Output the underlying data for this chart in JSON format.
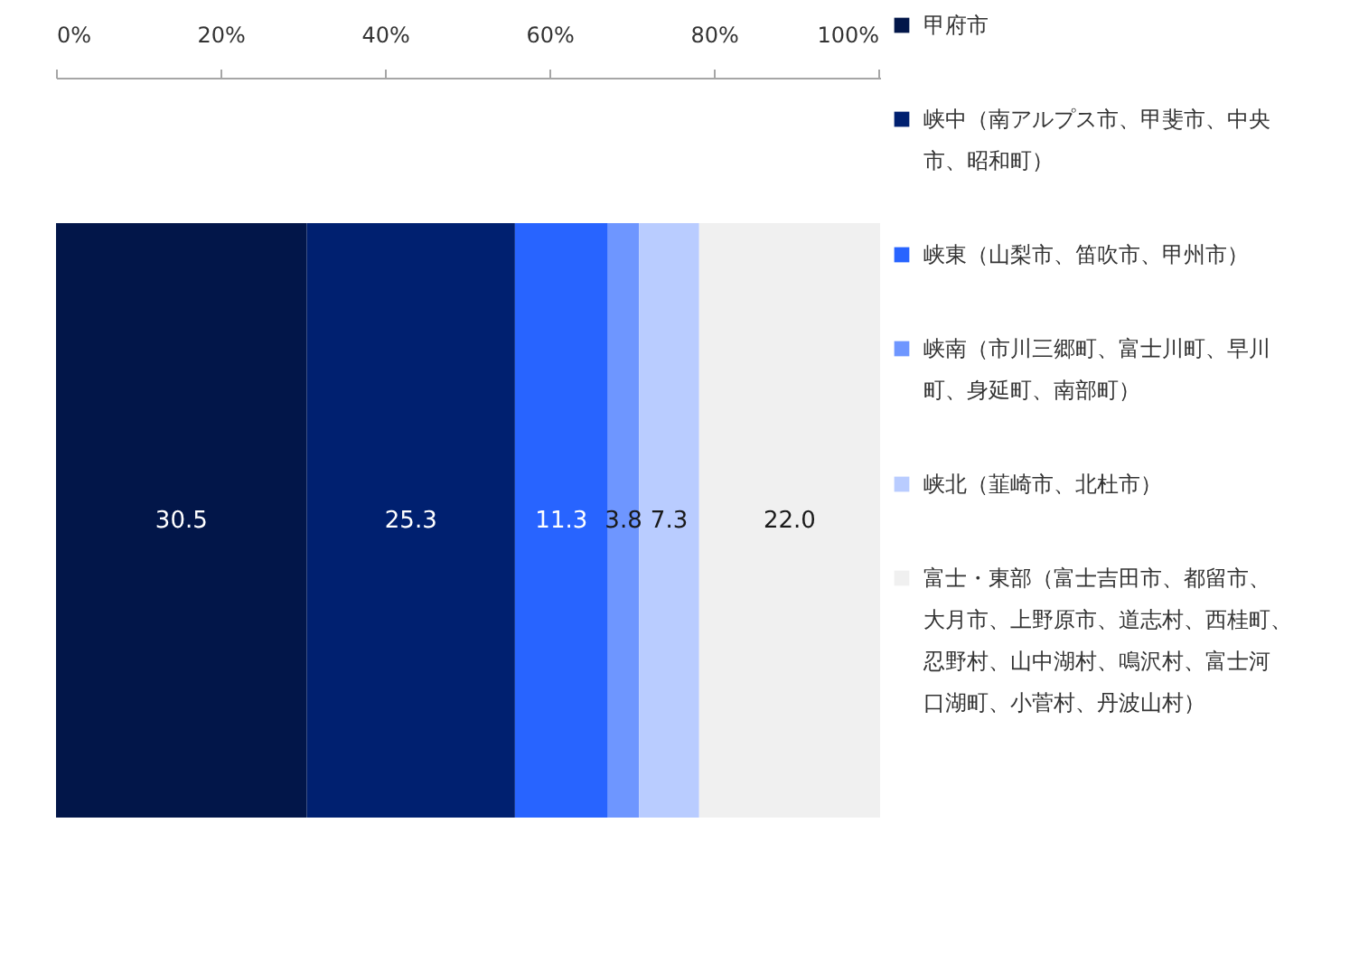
{
  "chart_data": {
    "type": "bar",
    "orientation": "horizontal",
    "stacked": true,
    "categories": [
      null
    ],
    "series": [
      {
        "name": "甲府市",
        "color": "#021649",
        "values": [
          30.5
        ],
        "value_labels": [
          "30.5"
        ]
      },
      {
        "name": "峡中（南アルプス市、甲斐市、中央市、昭和町）",
        "color": "#002070",
        "values": [
          25.3
        ],
        "value_labels": [
          "25.3"
        ]
      },
      {
        "name": "峡東（山梨市、笛吹市、甲州市）",
        "color": "#2864ff",
        "values": [
          11.3
        ],
        "value_labels": [
          "11.3"
        ]
      },
      {
        "name": "峡南（市川三郷町、富士川町、早川町、身延町、南部町）",
        "color": "#6e96ff",
        "values": [
          3.8
        ],
        "value_labels": [
          "3.8"
        ]
      },
      {
        "name": "峡北（韮崎市、北杜市）",
        "color": "#b9ccff",
        "values": [
          7.3
        ],
        "value_labels": [
          "7.3"
        ]
      },
      {
        "name": "富士・東部（富士吉田市、都留市、大月市、上野原市、道志村、西桂町、忍野村、山中湖村、鳴沢村、富士河口湖町、小菅村、丹波山村）",
        "color": "#f0f0f0",
        "values": [
          22.0
        ],
        "value_labels": [
          "22.0"
        ]
      }
    ],
    "xlim": [
      0,
      100.2
    ],
    "xticks": [
      {
        "value": 0,
        "label": "0%"
      },
      {
        "value": 20,
        "label": "20%"
      },
      {
        "value": 40,
        "label": "40%"
      },
      {
        "value": 60,
        "label": "60%"
      },
      {
        "value": 80,
        "label": "80%"
      },
      {
        "value": 100,
        "label": "100%"
      }
    ],
    "legend": "right"
  }
}
